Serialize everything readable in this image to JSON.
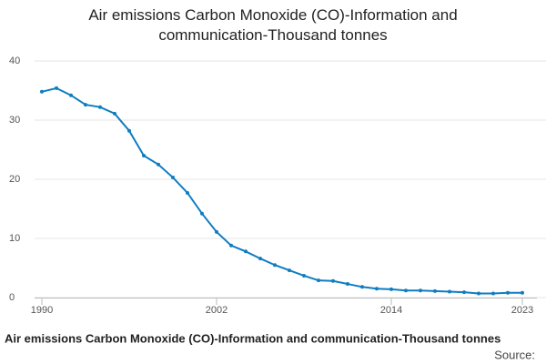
{
  "chart_data": {
    "type": "line",
    "title": "Air emissions Carbon Monoxide (CO)-Information and communication-Thousand tonnes",
    "source": "Source:",
    "x": [
      1990,
      1991,
      1992,
      1993,
      1994,
      1995,
      1996,
      1997,
      1998,
      1999,
      2000,
      2001,
      2002,
      2003,
      2004,
      2005,
      2006,
      2007,
      2008,
      2009,
      2010,
      2011,
      2012,
      2013,
      2014,
      2015,
      2016,
      2017,
      2018,
      2019,
      2020,
      2021,
      2022,
      2023
    ],
    "series": [
      {
        "name": "Air emissions Carbon Monoxide (CO)-Information and communication-Thousand tonnes",
        "color": "#0f7dc1",
        "values": [
          34.8,
          35.4,
          34.2,
          32.6,
          32.2,
          31.1,
          28.2,
          24.0,
          22.5,
          20.3,
          17.7,
          14.2,
          11.1,
          8.8,
          7.8,
          6.6,
          5.5,
          4.6,
          3.7,
          2.9,
          2.8,
          2.3,
          1.8,
          1.5,
          1.4,
          1.2,
          1.2,
          1.1,
          1.0,
          0.9,
          0.7,
          0.7,
          0.8,
          0.8
        ]
      }
    ],
    "xlim": [
      1990,
      2023
    ],
    "xticks": [
      1990,
      2002,
      2014,
      2023
    ],
    "ylim": [
      0,
      40
    ],
    "yticks": [
      0,
      10,
      20,
      30,
      40
    ],
    "grid": true
  }
}
